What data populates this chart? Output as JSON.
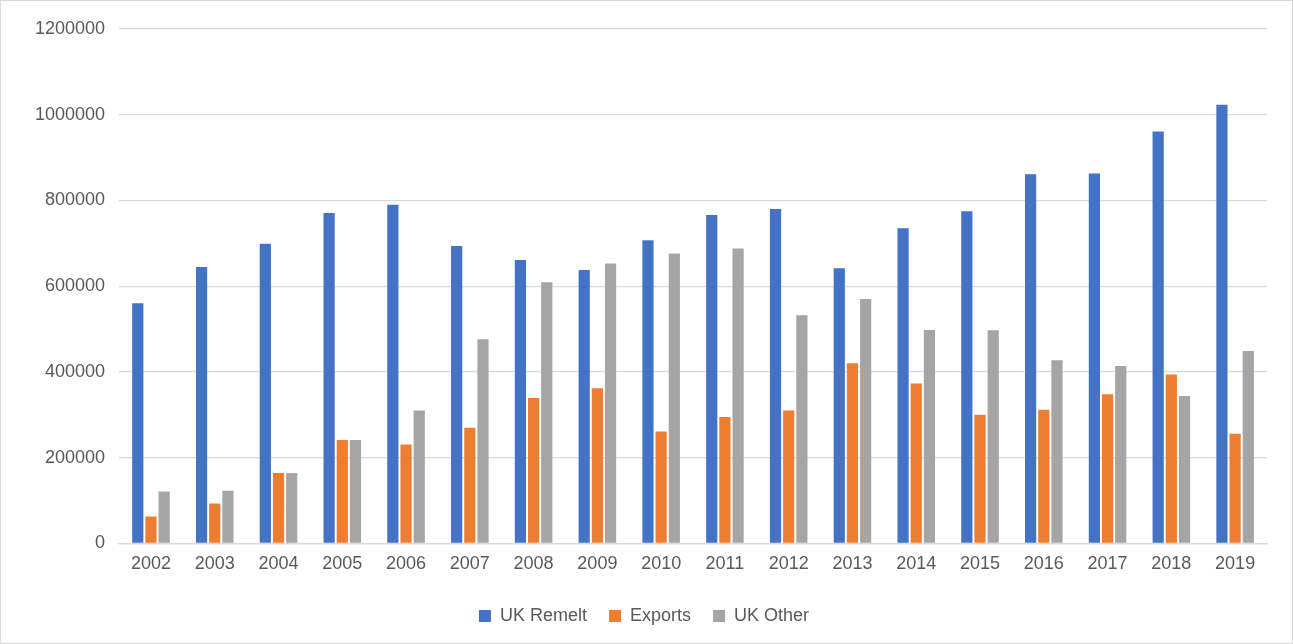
{
  "chart_data": {
    "type": "bar",
    "categories": [
      "2002",
      "2003",
      "2004",
      "2005",
      "2006",
      "2007",
      "2008",
      "2009",
      "2010",
      "2011",
      "2012",
      "2013",
      "2014",
      "2015",
      "2016",
      "2017",
      "2018",
      "2019"
    ],
    "series": [
      {
        "name": "UK Remelt",
        "color": "#4472c4",
        "values": [
          560000,
          645000,
          699000,
          771000,
          790000,
          694000,
          661000,
          638000,
          707000,
          766000,
          780000,
          642000,
          735000,
          775000,
          861000,
          863000,
          961000,
          1023000
        ]
      },
      {
        "name": "Exports",
        "color": "#ed7d31",
        "values": [
          63000,
          93000,
          164000,
          241000,
          231000,
          270000,
          339000,
          362000,
          261000,
          295000,
          310000,
          420000,
          373000,
          300000,
          312000,
          348000,
          394000,
          256000
        ]
      },
      {
        "name": "UK Other",
        "color": "#a5a5a5",
        "values": [
          121000,
          123000,
          164000,
          241000,
          310000,
          476000,
          609000,
          653000,
          676000,
          688000,
          532000,
          570000,
          498000,
          497000,
          427000,
          414000,
          344000,
          449000
        ]
      }
    ],
    "ylim": [
      0,
      1200000
    ],
    "yticks": [
      0,
      200000,
      400000,
      600000,
      800000,
      1000000,
      1200000
    ],
    "grid": "y",
    "legend": "bottom"
  }
}
